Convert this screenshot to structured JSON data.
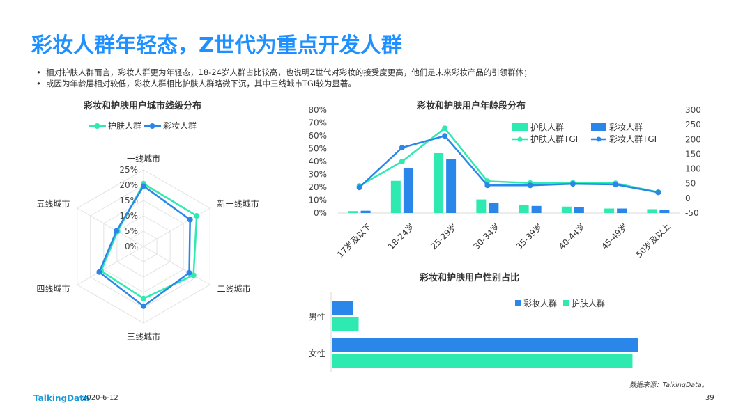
{
  "page": {
    "title": "彩妆人群年轻态，Z世代为重点开发人群",
    "bullets": [
      "相对护肤人群而言，彩妆人群更为年轻态，18-24岁人群占比较高，也说明Z世代对彩妆的接受度更高，他们是未来彩妆产品的引领群体；",
      "或因为年龄层相对较低，彩妆人群相比护肤人群略微下沉，其中三线城市TGI较为显著。"
    ],
    "source": "数据来源：TalkingData。",
    "footer_logo": "TalkingData",
    "date": "2020-6-12",
    "page_number": "39"
  },
  "colors": {
    "skincare": "#2eeab0",
    "makeup": "#2a86e8",
    "title": "#1e90ff"
  },
  "chart_data": [
    {
      "type": "radar",
      "title": "彩妆和护肤用户城市线级分布",
      "axes": [
        "一线城市",
        "新一线城市",
        "二线城市",
        "三线城市",
        "四线城市",
        "五线城市"
      ],
      "r_ticks": [
        "0%",
        "5%",
        "10%",
        "15%",
        "20%",
        "25%"
      ],
      "r_max": 25,
      "legend": [
        "护肤人群",
        "彩妆人群"
      ],
      "series": [
        {
          "name": "护肤人群",
          "values": [
            20.5,
            20.0,
            18.8,
            17.0,
            16.0,
            9.8
          ]
        },
        {
          "name": "彩妆人群",
          "values": [
            19.7,
            17.5,
            17.2,
            19.5,
            16.7,
            10.2
          ]
        }
      ]
    },
    {
      "type": "bar+line",
      "title": "彩妆和护肤用户年龄段分布",
      "categories": [
        "17岁及以下",
        "18-24岁",
        "25-29岁",
        "30-34岁",
        "35-39岁",
        "40-44岁",
        "45-49岁",
        "50岁及以上"
      ],
      "ylim": [
        0,
        80
      ],
      "y_ticks": [
        "0%",
        "10%",
        "20%",
        "30%",
        "40%",
        "50%",
        "60%",
        "70%",
        "80%"
      ],
      "y2lim": [
        -50,
        300
      ],
      "y2_ticks": [
        "-50",
        "0",
        "50",
        "100",
        "150",
        "200",
        "250",
        "300"
      ],
      "legend": [
        "护肤人群",
        "彩妆人群",
        "护肤人群TGI",
        "彩妆人群TGI"
      ],
      "series": [
        {
          "name": "护肤人群",
          "kind": "bar",
          "axis": "left",
          "values": [
            1.5,
            25.0,
            46.5,
            10.5,
            6.5,
            5.0,
            3.5,
            3.0
          ]
        },
        {
          "name": "彩妆人群",
          "kind": "bar",
          "axis": "left",
          "values": [
            1.8,
            34.8,
            42.0,
            8.0,
            5.5,
            4.5,
            3.5,
            2.2
          ]
        },
        {
          "name": "护肤人群TGI",
          "kind": "line",
          "axis": "right",
          "values": [
            42,
            125,
            238,
            58,
            52,
            53,
            51,
            21
          ]
        },
        {
          "name": "彩妆人群TGI",
          "kind": "line",
          "axis": "right",
          "values": [
            37,
            172,
            212,
            44,
            44,
            49,
            47,
            20
          ]
        }
      ]
    },
    {
      "type": "horizontal-bar",
      "title": "彩妆和护肤用户性别占比",
      "categories": [
        "男性",
        "女性"
      ],
      "legend": [
        "彩妆人群",
        "护肤人群"
      ],
      "xlim": [
        0,
        100
      ],
      "series": [
        {
          "name": "彩妆人群",
          "values": [
            6.5,
            93.5
          ]
        },
        {
          "name": "护肤人群",
          "values": [
            8.2,
            91.8
          ]
        }
      ]
    }
  ]
}
